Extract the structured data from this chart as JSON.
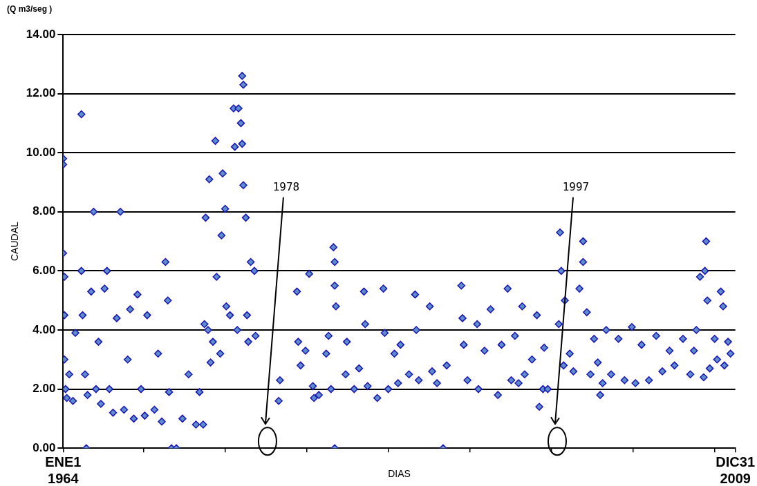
{
  "chart_data": {
    "type": "scatter",
    "ylabel": "CAUDAL",
    "xlabel": "DIAS",
    "annotations": [
      "(Q m3/seg )",
      "1978",
      "1997"
    ],
    "xlim": [
      "1964-01-01",
      "2009-12-31"
    ],
    "xticks": [
      {
        "value": "1964-01-01",
        "label": "ENE1\n1964"
      },
      {
        "value": "1969-07",
        "label": null
      },
      {
        "value": "1975-02",
        "label": null
      },
      {
        "value": "1980-09",
        "label": null
      },
      {
        "value": "1986-04",
        "label": null
      },
      {
        "value": "1991-11",
        "label": null
      },
      {
        "value": "1997-06",
        "label": null
      },
      {
        "value": "2003-01",
        "label": null
      },
      {
        "value": "2008-08",
        "label": null
      },
      {
        "value": "2009-12-31",
        "label": "DIC31\n2009"
      }
    ],
    "ylim": [
      0,
      14
    ],
    "yticks": [
      {
        "value": 0,
        "label": "0.00"
      },
      {
        "value": 2,
        "label": "2.00"
      },
      {
        "value": 4,
        "label": "4.00"
      },
      {
        "value": 6,
        "label": "6.00"
      },
      {
        "value": 8,
        "label": "8.00"
      },
      {
        "value": 10,
        "label": "10.00"
      },
      {
        "value": 12,
        "label": "12.00"
      },
      {
        "value": 14,
        "label": "14.00"
      }
    ],
    "grid": "y",
    "legend": false,
    "marker": "diamond",
    "series": [
      {
        "color": "#1a10b8",
        "x": [
          "1964-01",
          "1964-01",
          "1964-01",
          "1964-02",
          "1964-02",
          "1964-02",
          "1964-03",
          "1964-04",
          "1964-06",
          "1964-09",
          "1964-11",
          "1965-04",
          "1965-04",
          "1965-05",
          "1965-07",
          "1965-08",
          "1965-09",
          "1965-12",
          "1966-02",
          "1966-04",
          "1966-06",
          "1966-08",
          "1966-11",
          "1967-01",
          "1967-03",
          "1967-06",
          "1967-09",
          "1967-12",
          "1968-03",
          "1968-06",
          "1968-08",
          "1968-11",
          "1969-02",
          "1969-05",
          "1969-08",
          "1969-10",
          "1970-04",
          "1970-07",
          "1970-10",
          "1971-01",
          "1971-03",
          "1971-04",
          "1971-06",
          "1971-10",
          "1972-03",
          "1972-08",
          "1973-02",
          "1973-05",
          "1973-08",
          "1973-09",
          "1973-10",
          "1973-12",
          "1974-01",
          "1974-02",
          "1974-04",
          "1974-06",
          "1974-07",
          "1974-10",
          "1974-11",
          "1974-12",
          "1975-02",
          "1975-03",
          "1975-06",
          "1975-09",
          "1975-10",
          "1975-12",
          "1976-01",
          "1976-03",
          "1976-04",
          "1976-04",
          "1976-05",
          "1976-05",
          "1976-07",
          "1976-08",
          "1976-09",
          "1976-11",
          "1977-02",
          "1977-03",
          "1978-10",
          "1978-11",
          "1980-01",
          "1980-02",
          "1980-04",
          "1980-08",
          "1980-11",
          "1981-02",
          "1981-03",
          "1981-07",
          "1982-01",
          "1982-03",
          "1982-05",
          "1982-07",
          "1982-08",
          "1982-08",
          "1982-09",
          "1982-08",
          "1983-05",
          "1983-06",
          "1983-12",
          "1984-04",
          "1984-08",
          "1984-09",
          "1984-11",
          "1985-07",
          "1985-12",
          "1986-01",
          "1986-04",
          "1986-09",
          "1986-12",
          "1987-02",
          "1987-09",
          "1988-02",
          "1988-03",
          "1988-05",
          "1989-02",
          "1989-04",
          "1989-08",
          "1990-01",
          "1990-04",
          "1991-04",
          "1991-05",
          "1991-06",
          "1991-09",
          "1992-05",
          "1992-06",
          "1992-11",
          "1993-04",
          "1993-10",
          "1994-01",
          "1994-06",
          "1994-09",
          "1994-12",
          "1995-03",
          "1995-06",
          "1995-08",
          "1996-02",
          "1996-06",
          "1996-08",
          "1996-11",
          "1996-12",
          "1997-03",
          "1997-12",
          "1998-01",
          "1998-02",
          "1998-04",
          "1998-05",
          "1998-09",
          "1998-12",
          "1999-05",
          "1999-08",
          "1999-08",
          "1999-11",
          "2000-02",
          "2000-05",
          "2000-08",
          "2000-10",
          "2000-12",
          "2001-03",
          "2001-07",
          "2002-01",
          "2002-06",
          "2002-12",
          "2003-03",
          "2003-08",
          "2004-02",
          "2004-08",
          "2005-01",
          "2005-07",
          "2005-11",
          "2006-06",
          "2006-12",
          "2007-03",
          "2007-05",
          "2007-08",
          "2007-11",
          "2007-12",
          "2008-01",
          "2008-02",
          "2008-04",
          "2008-08",
          "2008-10",
          "2009-01",
          "2009-03",
          "2009-04",
          "2009-07",
          "2009-09"
        ],
        "values": [
          6.6,
          9.8,
          9.6,
          5.8,
          4.5,
          3.0,
          2.0,
          1.7,
          2.5,
          1.6,
          3.9,
          11.3,
          6.0,
          4.5,
          2.5,
          0,
          1.8,
          5.3,
          8.0,
          2.0,
          3.6,
          1.5,
          5.4,
          6.0,
          2.0,
          1.2,
          4.4,
          8.0,
          1.3,
          3.0,
          4.7,
          1.0,
          5.2,
          2.0,
          1.1,
          4.5,
          1.3,
          3.2,
          0.9,
          6.3,
          5.0,
          1.9,
          0,
          0,
          1.0,
          2.5,
          0.8,
          1.9,
          0.8,
          4.2,
          7.8,
          4.0,
          9.1,
          2.9,
          3.6,
          10.4,
          5.8,
          3.2,
          7.2,
          9.3,
          8.1,
          4.8,
          4.5,
          11.5,
          10.2,
          4.0,
          11.5,
          11.0,
          10.3,
          12.6,
          12.3,
          8.9,
          7.8,
          4.5,
          3.6,
          6.3,
          6.0,
          3.8,
          1.6,
          2.3,
          5.3,
          3.6,
          2.8,
          3.3,
          5.9,
          2.1,
          1.7,
          1.8,
          3.2,
          3.8,
          2.0,
          6.8,
          6.3,
          5.5,
          4.8,
          0,
          2.5,
          3.6,
          2.0,
          2.7,
          5.3,
          4.2,
          2.1,
          1.7,
          5.4,
          3.9,
          2.0,
          3.2,
          2.2,
          3.5,
          2.5,
          5.2,
          4.0,
          2.3,
          4.8,
          2.6,
          2.2,
          0,
          2.8,
          5.5,
          4.4,
          3.5,
          2.3,
          4.2,
          2.0,
          3.3,
          4.7,
          1.8,
          3.5,
          5.4,
          2.3,
          3.8,
          2.2,
          4.8,
          2.5,
          3.0,
          4.5,
          1.4,
          2.0,
          3.4,
          2.0,
          4.2,
          7.3,
          6.0,
          2.8,
          5.0,
          3.2,
          2.6,
          5.4,
          7.0,
          6.3,
          4.6,
          2.5,
          3.7,
          2.9,
          1.8,
          2.2,
          4.0,
          2.5,
          3.7,
          2.3,
          4.1,
          2.2,
          3.5,
          2.3,
          3.8,
          2.6,
          3.3,
          2.8,
          3.7,
          2.5,
          3.3,
          4.0,
          5.8,
          2.4,
          6.0,
          7.0,
          5.0,
          2.7,
          3.7,
          3.0,
          5.3,
          4.8,
          2.8,
          3.6,
          3.2
        ]
      }
    ]
  }
}
